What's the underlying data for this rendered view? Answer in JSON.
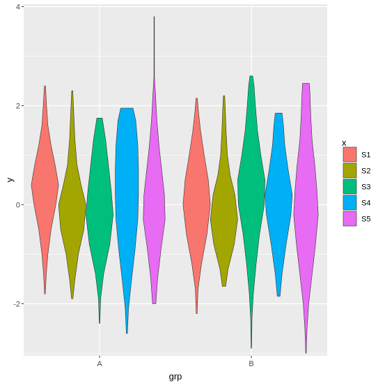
{
  "chart_data": {
    "type": "violin",
    "xlabel": "grp",
    "ylabel": "y",
    "categories": [
      "A",
      "B"
    ],
    "ylim": [
      -3.05,
      4.05
    ],
    "y_ticks": [
      -2,
      0,
      2,
      4
    ],
    "grid": true,
    "legend": {
      "title": "x",
      "placement": "right"
    },
    "series": [
      {
        "name": "S1",
        "color": "#F8766D",
        "groups": [
          {
            "group": "A",
            "min": -1.8,
            "max": 2.4,
            "profile": [
              [
                -1.8,
                0.03
              ],
              [
                -1.4,
                0.1
              ],
              [
                -1.0,
                0.22
              ],
              [
                -0.5,
                0.45
              ],
              [
                0.0,
                0.8
              ],
              [
                0.4,
                1.0
              ],
              [
                0.8,
                0.75
              ],
              [
                1.2,
                0.45
              ],
              [
                1.6,
                0.22
              ],
              [
                2.0,
                0.12
              ],
              [
                2.4,
                0.04
              ]
            ]
          },
          {
            "group": "B",
            "min": -2.2,
            "max": 2.15,
            "profile": [
              [
                -2.2,
                0.03
              ],
              [
                -1.7,
                0.1
              ],
              [
                -1.2,
                0.35
              ],
              [
                -0.6,
                0.75
              ],
              [
                0.0,
                1.0
              ],
              [
                0.5,
                0.85
              ],
              [
                1.0,
                0.55
              ],
              [
                1.5,
                0.28
              ],
              [
                1.9,
                0.12
              ],
              [
                2.15,
                0.05
              ]
            ]
          }
        ]
      },
      {
        "name": "S2",
        "color": "#A3A500",
        "groups": [
          {
            "group": "A",
            "min": -1.9,
            "max": 2.3,
            "profile": [
              [
                -1.9,
                0.05
              ],
              [
                -1.5,
                0.2
              ],
              [
                -1.0,
                0.45
              ],
              [
                -0.5,
                0.85
              ],
              [
                0.0,
                1.0
              ],
              [
                0.4,
                0.65
              ],
              [
                0.8,
                0.35
              ],
              [
                1.3,
                0.2
              ],
              [
                1.8,
                0.12
              ],
              [
                2.3,
                0.04
              ]
            ]
          },
          {
            "group": "B",
            "min": -1.65,
            "max": 2.2,
            "profile": [
              [
                -1.65,
                0.12
              ],
              [
                -1.3,
                0.3
              ],
              [
                -0.8,
                0.75
              ],
              [
                -0.3,
                1.0
              ],
              [
                0.2,
                0.8
              ],
              [
                0.6,
                0.45
              ],
              [
                1.0,
                0.25
              ],
              [
                1.5,
                0.15
              ],
              [
                1.9,
                0.1
              ],
              [
                2.2,
                0.05
              ]
            ]
          }
        ]
      },
      {
        "name": "S3",
        "color": "#00BF7D",
        "groups": [
          {
            "group": "A",
            "min": -2.4,
            "max": 1.75,
            "profile": [
              [
                -2.4,
                0.02
              ],
              [
                -1.9,
                0.08
              ],
              [
                -1.4,
                0.3
              ],
              [
                -0.8,
                0.75
              ],
              [
                -0.2,
                1.0
              ],
              [
                0.3,
                0.85
              ],
              [
                0.8,
                0.65
              ],
              [
                1.3,
                0.45
              ],
              [
                1.75,
                0.2
              ]
            ]
          },
          {
            "group": "B",
            "min": -2.9,
            "max": 2.6,
            "profile": [
              [
                -2.9,
                0.02
              ],
              [
                -2.3,
                0.05
              ],
              [
                -1.8,
                0.15
              ],
              [
                -1.2,
                0.35
              ],
              [
                -0.6,
                0.6
              ],
              [
                0.0,
                0.95
              ],
              [
                0.5,
                1.0
              ],
              [
                1.0,
                0.7
              ],
              [
                1.5,
                0.45
              ],
              [
                2.0,
                0.3
              ],
              [
                2.4,
                0.2
              ],
              [
                2.6,
                0.1
              ]
            ]
          }
        ]
      },
      {
        "name": "S4",
        "color": "#00B0F6",
        "groups": [
          {
            "group": "A",
            "min": -2.6,
            "max": 1.95,
            "profile": [
              [
                -2.6,
                0.04
              ],
              [
                -2.1,
                0.12
              ],
              [
                -1.5,
                0.35
              ],
              [
                -0.9,
                0.6
              ],
              [
                -0.3,
                0.8
              ],
              [
                0.2,
                0.85
              ],
              [
                0.7,
                0.85
              ],
              [
                1.2,
                0.8
              ],
              [
                1.7,
                0.65
              ],
              [
                1.95,
                0.45
              ]
            ]
          },
          {
            "group": "B",
            "min": -1.85,
            "max": 1.85,
            "profile": [
              [
                -1.85,
                0.1
              ],
              [
                -1.4,
                0.25
              ],
              [
                -0.8,
                0.55
              ],
              [
                -0.2,
                0.9
              ],
              [
                0.2,
                1.0
              ],
              [
                0.7,
                0.7
              ],
              [
                1.2,
                0.45
              ],
              [
                1.6,
                0.35
              ],
              [
                1.85,
                0.25
              ]
            ]
          }
        ]
      },
      {
        "name": "S5",
        "color": "#E76BF3",
        "groups": [
          {
            "group": "A",
            "min": -2.0,
            "max": 3.8,
            "profile": [
              [
                -2.0,
                0.12
              ],
              [
                -1.5,
                0.25
              ],
              [
                -0.9,
                0.5
              ],
              [
                -0.3,
                0.8
              ],
              [
                0.2,
                0.75
              ],
              [
                0.7,
                0.55
              ],
              [
                1.2,
                0.35
              ],
              [
                1.7,
                0.2
              ],
              [
                2.2,
                0.1
              ],
              [
                2.4,
                0.06
              ],
              [
                2.6,
                0.02
              ],
              [
                3.8,
                0.015
              ]
            ]
          },
          {
            "group": "B",
            "min": -3.0,
            "max": 2.45,
            "profile": [
              [
                -3.0,
                0.02
              ],
              [
                -2.5,
                0.08
              ],
              [
                -2.0,
                0.2
              ],
              [
                -1.4,
                0.45
              ],
              [
                -0.8,
                0.7
              ],
              [
                -0.2,
                0.9
              ],
              [
                0.3,
                0.8
              ],
              [
                0.8,
                0.65
              ],
              [
                1.3,
                0.45
              ],
              [
                1.8,
                0.35
              ],
              [
                2.2,
                0.3
              ],
              [
                2.45,
                0.25
              ]
            ]
          }
        ]
      }
    ]
  }
}
